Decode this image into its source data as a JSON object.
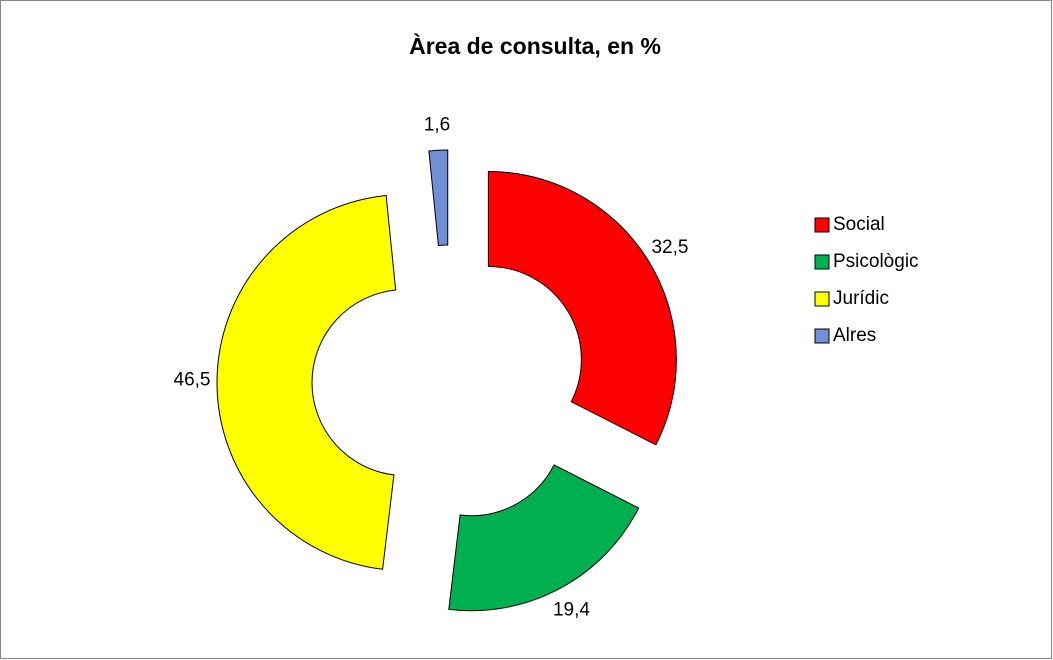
{
  "chart_data": {
    "type": "donut",
    "title": "Àrea de consulta, en %",
    "categories": [
      "Social",
      "Psicològic",
      "Jurídic",
      "Alres"
    ],
    "values": [
      32.5,
      19.4,
      46.5,
      1.6
    ],
    "value_labels": [
      "32,5",
      "19,4",
      "46,5",
      "1,6"
    ],
    "colors": [
      "#ff0000",
      "#00b050",
      "#ffff00",
      "#6f8fd6"
    ],
    "exploded": true,
    "legend": "right"
  }
}
